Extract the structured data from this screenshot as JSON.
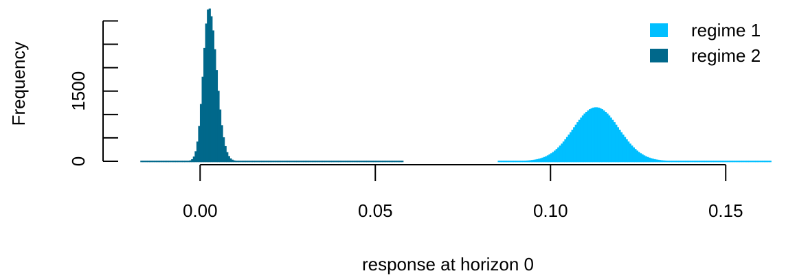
{
  "chart_data": {
    "type": "histogram",
    "title": "",
    "xlabel": "response at horizon 0",
    "ylabel": "Frequency",
    "xlim": [
      -0.0175,
      0.1625
    ],
    "ylim": [
      0,
      3300
    ],
    "x_ticks": [
      {
        "value": 0.0,
        "label": "0.00"
      },
      {
        "value": 0.05,
        "label": "0.05"
      },
      {
        "value": 0.1,
        "label": "0.10"
      },
      {
        "value": 0.15,
        "label": "0.15"
      }
    ],
    "y_ticks": [
      0,
      500,
      1000,
      1500,
      2000,
      2500,
      3000
    ],
    "y_tick_labels": [
      {
        "value": 0,
        "label": "0"
      },
      {
        "value": 1500,
        "label": "1500"
      }
    ],
    "legend": {
      "position": "top-right",
      "entries": [
        {
          "label": "regime 1",
          "color": "#00BFFF"
        },
        {
          "label": "regime 2",
          "color": "#00688B"
        }
      ]
    },
    "series": [
      {
        "name": "regime 1",
        "color": "#00BFFF",
        "bin_width": 0.0005,
        "range": [
          0.085,
          0.163
        ],
        "peak_x": 0.113,
        "peak_frequency": 1150
      },
      {
        "name": "regime 2",
        "color": "#00688B",
        "bin_width": 0.0005,
        "range": [
          -0.017,
          0.058
        ],
        "peak_x": 0.0025,
        "peak_frequency": 3280
      }
    ]
  }
}
